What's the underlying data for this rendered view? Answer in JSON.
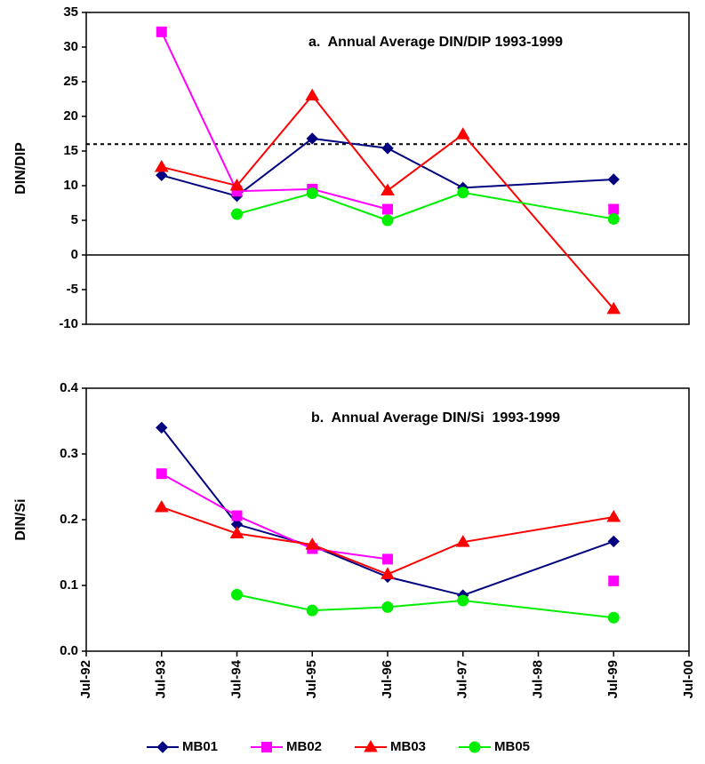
{
  "chart_data": [
    {
      "type": "line",
      "title": "a.  Annual Average DIN/DIP 1993-1999",
      "y_label": "DIN/DIP",
      "x": [
        1993.5,
        1994.5,
        1995.5,
        1996.5,
        1997.5,
        1999.5
      ],
      "xlim": [
        1992.5,
        2000.5
      ],
      "ylim": [
        -10,
        35
      ],
      "yticks": [
        -10,
        -5,
        0,
        5,
        10,
        15,
        20,
        25,
        30,
        35
      ],
      "reference_line": 16,
      "series": [
        {
          "name": "MB01",
          "color": "#000080",
          "marker": "diamond",
          "values": [
            11.5,
            8.5,
            16.8,
            15.4,
            9.7,
            10.9
          ]
        },
        {
          "name": "MB02",
          "color": "#ff00ff",
          "marker": "square",
          "values": [
            32.2,
            9.2,
            9.5,
            6.6,
            null,
            6.6
          ]
        },
        {
          "name": "MB03",
          "color": "#ff0000",
          "marker": "triangle",
          "values": [
            12.7,
            10.0,
            23.0,
            9.3,
            17.4,
            -7.8
          ]
        },
        {
          "name": "MB05",
          "color": "#00ee00",
          "marker": "circle",
          "values": [
            null,
            5.9,
            8.9,
            5.0,
            9.0,
            5.2
          ]
        }
      ]
    },
    {
      "type": "line",
      "title": "b.  Annual Average DIN/Si  1993-1999",
      "y_label": "DIN/Si",
      "x": [
        1993.5,
        1994.5,
        1995.5,
        1996.5,
        1997.5,
        1999.5
      ],
      "xlim": [
        1992.5,
        2000.5
      ],
      "xticks": [
        {
          "value": 1992.5,
          "label": "Jul-92"
        },
        {
          "value": 1993.5,
          "label": "Jul-93"
        },
        {
          "value": 1994.5,
          "label": "Jul-94"
        },
        {
          "value": 1995.5,
          "label": "Jul-95"
        },
        {
          "value": 1996.5,
          "label": "Jul-96"
        },
        {
          "value": 1997.5,
          "label": "Jul-97"
        },
        {
          "value": 1998.5,
          "label": "Jul-98"
        },
        {
          "value": 1999.5,
          "label": "Jul-99"
        },
        {
          "value": 2000.5,
          "label": "Jul-00"
        }
      ],
      "ylim": [
        0,
        0.4
      ],
      "yticks": [
        {
          "value": 0,
          "label": "0.0"
        },
        0.1,
        0.2,
        0.3,
        0.4
      ],
      "series": [
        {
          "name": "MB01",
          "color": "#000080",
          "marker": "diamond",
          "values": [
            0.34,
            0.193,
            0.16,
            0.113,
            0.085,
            0.167
          ]
        },
        {
          "name": "MB02",
          "color": "#ff00ff",
          "marker": "square",
          "values": [
            0.27,
            0.206,
            0.156,
            0.14,
            null,
            0.107
          ]
        },
        {
          "name": "MB03",
          "color": "#ff0000",
          "marker": "triangle",
          "values": [
            0.219,
            0.179,
            0.162,
            0.117,
            0.166,
            0.204
          ]
        },
        {
          "name": "MB05",
          "color": "#00ee00",
          "marker": "circle",
          "values": [
            null,
            0.086,
            0.062,
            0.067,
            0.077,
            0.051
          ]
        }
      ]
    }
  ]
}
